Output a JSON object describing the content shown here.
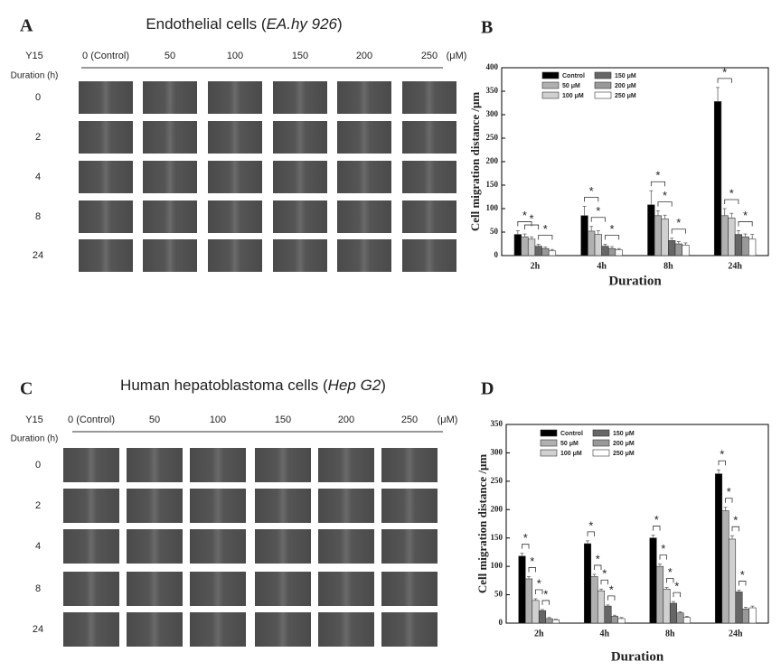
{
  "panels": [
    {
      "letter": "A",
      "title": [
        "Endothelial cells (",
        "EA.hy 926",
        ")"
      ],
      "treatment": "Y15",
      "concentrations": [
        "0 (Control)",
        "50",
        "100",
        "150",
        "200",
        "250"
      ],
      "unit": "(μM)",
      "duration_label": "Duration (h)",
      "durations": [
        "0",
        "2",
        "4",
        "8",
        "24"
      ]
    },
    {
      "letter": "C",
      "title": [
        "Human hepatoblastoma cells (",
        "Hep G2",
        ")"
      ],
      "treatment": "Y15",
      "concentrations": [
        "0 (Control)",
        "50",
        "100",
        "150",
        "200",
        "250"
      ],
      "unit": "(μM)",
      "duration_label": "Duration (h)",
      "durations": [
        "0",
        "2",
        "4",
        "8",
        "24"
      ]
    }
  ],
  "chart_data": [
    {
      "type": "bar",
      "letter": "B",
      "y_label": "Cell migration distance /μm",
      "x_label": "Duration",
      "categories": [
        "2h",
        "4h",
        "8h",
        "24h"
      ],
      "ylim": [
        0,
        400
      ],
      "yticks": [
        0,
        50,
        100,
        150,
        200,
        250,
        300,
        350,
        400
      ],
      "significance_label": "*",
      "series": [
        {
          "name": "Control",
          "color": "#000000",
          "values": [
            45,
            85,
            108,
            328
          ],
          "errors": [
            8,
            20,
            30,
            30
          ]
        },
        {
          "name": "50 μM",
          "color": "#b0b0b0",
          "values": [
            40,
            52,
            85,
            85
          ],
          "errors": [
            6,
            10,
            10,
            15
          ]
        },
        {
          "name": "100 μM",
          "color": "#d0d0d0",
          "values": [
            35,
            45,
            78,
            80
          ],
          "errors": [
            5,
            8,
            8,
            10
          ]
        },
        {
          "name": "150 μM",
          "color": "#666666",
          "values": [
            20,
            20,
            32,
            45
          ],
          "errors": [
            4,
            4,
            5,
            8
          ]
        },
        {
          "name": "200 μM",
          "color": "#999999",
          "values": [
            15,
            15,
            25,
            40
          ],
          "errors": [
            3,
            4,
            5,
            6
          ]
        },
        {
          "name": "250 μM",
          "color": "#ffffff",
          "values": [
            10,
            12,
            22,
            35
          ],
          "errors": [
            3,
            3,
            5,
            10
          ]
        }
      ]
    },
    {
      "type": "bar",
      "letter": "D",
      "y_label": "Cell migration distance /μm",
      "x_label": "Duration",
      "categories": [
        "2h",
        "4h",
        "8h",
        "24h"
      ],
      "ylim": [
        0,
        350
      ],
      "yticks": [
        0,
        50,
        100,
        150,
        200,
        250,
        300,
        350
      ],
      "significance_label": "*",
      "series": [
        {
          "name": "Control",
          "color": "#000000",
          "values": [
            118,
            140,
            150,
            263
          ],
          "errors": [
            5,
            5,
            5,
            7
          ]
        },
        {
          "name": "50 μM",
          "color": "#b0b0b0",
          "values": [
            78,
            82,
            100,
            198
          ],
          "errors": [
            4,
            4,
            4,
            6
          ]
        },
        {
          "name": "100 μM",
          "color": "#d0d0d0",
          "values": [
            40,
            57,
            60,
            148
          ],
          "errors": [
            3,
            3,
            3,
            6
          ]
        },
        {
          "name": "150 μM",
          "color": "#666666",
          "values": [
            22,
            30,
            35,
            55
          ],
          "errors": [
            2,
            2,
            3,
            3
          ]
        },
        {
          "name": "200 μM",
          "color": "#999999",
          "values": [
            8,
            12,
            18,
            25
          ],
          "errors": [
            2,
            2,
            2,
            3
          ]
        },
        {
          "name": "250 μM",
          "color": "#ffffff",
          "values": [
            6,
            8,
            10,
            27
          ],
          "errors": [
            1,
            2,
            2,
            3
          ]
        }
      ]
    }
  ]
}
